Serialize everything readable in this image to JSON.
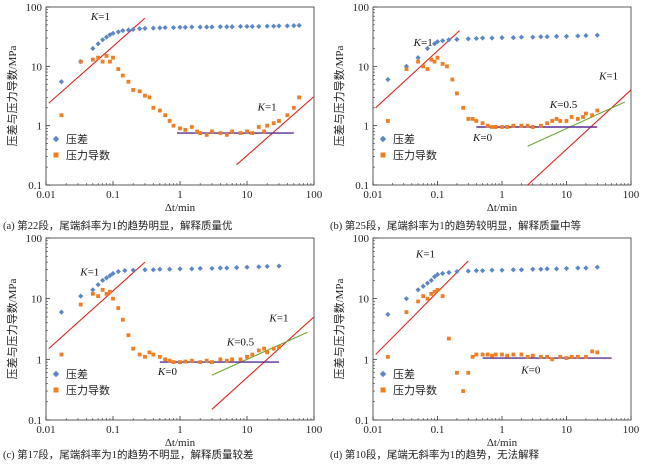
{
  "panels_layout": "2x2",
  "colors": {
    "diff": "#5b86c7",
    "deriv": "#ef7d22",
    "k1_line": "#e0241b",
    "k0_line": "#5a2d91",
    "k05_line": "#6aa832"
  },
  "chart_data": [
    {
      "type": "scatter",
      "title": "",
      "caption": "(a) 第22段，尾端斜率为1的趋势明显，解释质量优",
      "xlabel": "Δt/min",
      "ylabel": "压差与压力导数/MPa",
      "x_scale": "log",
      "y_scale": "log",
      "xlim": [
        0.01,
        100
      ],
      "ylim": [
        0.1,
        100
      ],
      "x_ticks": [
        "0.01",
        "0.1",
        "1",
        "10",
        "100"
      ],
      "y_ticks": [
        "0.1",
        "1",
        "10",
        "100"
      ],
      "grid": false,
      "legend_position": "lower-left",
      "series": [
        {
          "name": "压差",
          "marker": "diamond",
          "x": [
            0.017,
            0.033,
            0.05,
            0.06,
            0.07,
            0.08,
            0.09,
            0.1,
            0.12,
            0.14,
            0.17,
            0.2,
            0.25,
            0.3,
            0.4,
            0.5,
            0.6,
            0.8,
            1,
            1.2,
            1.5,
            2,
            2.5,
            3,
            4,
            5,
            6,
            8,
            10,
            12,
            15,
            20,
            25,
            30,
            40,
            50,
            60
          ],
          "y": [
            5.5,
            12,
            20,
            24,
            28,
            31,
            34,
            36,
            38,
            40,
            41,
            42,
            43,
            43.5,
            44,
            44.5,
            45,
            45,
            45.5,
            45.5,
            46,
            46,
            46,
            46,
            46.5,
            46.5,
            46.5,
            47,
            47,
            47,
            47,
            47.5,
            47.5,
            48,
            48,
            48.5,
            49
          ]
        },
        {
          "name": "压力导数",
          "marker": "square",
          "x": [
            0.017,
            0.033,
            0.05,
            0.06,
            0.07,
            0.08,
            0.09,
            0.1,
            0.12,
            0.14,
            0.17,
            0.2,
            0.25,
            0.3,
            0.35,
            0.4,
            0.5,
            0.6,
            0.7,
            0.8,
            1,
            1.2,
            1.5,
            1.8,
            2,
            2.5,
            3,
            4,
            5,
            6,
            8,
            10,
            12,
            15,
            18,
            20,
            25,
            30,
            40,
            50,
            60
          ],
          "y": [
            1.5,
            12,
            13,
            14,
            12,
            15,
            12,
            14,
            9,
            7,
            5.5,
            4,
            3.8,
            3.2,
            3,
            2,
            1.8,
            1.5,
            1.2,
            1,
            0.9,
            0.85,
            0.95,
            0.8,
            0.75,
            0.7,
            0.8,
            0.75,
            0.7,
            0.8,
            0.75,
            0.8,
            0.75,
            0.95,
            0.8,
            1.0,
            1.1,
            1.2,
            1.5,
            2.0,
            3.0
          ]
        }
      ],
      "reference_lines": [
        {
          "label": "K=1",
          "color": "red",
          "x": [
            0.011,
            0.3
          ],
          "y": [
            2.4,
            65
          ]
        },
        {
          "label": "K=1",
          "color": "red",
          "x": [
            7,
            100
          ],
          "y": [
            0.22,
            3.1
          ]
        },
        {
          "label": "",
          "color": "purple",
          "x": [
            0.9,
            50
          ],
          "y": [
            0.75,
            0.75
          ]
        }
      ],
      "annotations": [
        {
          "text": "K=1",
          "x": 0.065,
          "y": 60
        },
        {
          "text": "K=1",
          "x": 20,
          "y": 1.8
        }
      ]
    },
    {
      "type": "scatter",
      "title": "",
      "caption": "(b) 第25段，尾端斜率为1的趋势较明显，解释质量中等",
      "xlabel": "Δt/min",
      "ylabel": "压差与压力导数/MPa",
      "x_scale": "log",
      "y_scale": "log",
      "xlim": [
        0.01,
        100
      ],
      "ylim": [
        0.1,
        100
      ],
      "x_ticks": [
        "0.01",
        "0.1",
        "1",
        "10",
        "100"
      ],
      "y_ticks": [
        "0.1",
        "1",
        "10",
        "100"
      ],
      "grid": false,
      "legend_position": "lower-left",
      "series": [
        {
          "name": "压差",
          "marker": "diamond",
          "x": [
            0.017,
            0.033,
            0.05,
            0.07,
            0.09,
            0.1,
            0.12,
            0.15,
            0.2,
            0.3,
            0.4,
            0.5,
            0.7,
            1,
            1.5,
            2,
            3,
            4,
            5,
            7,
            10,
            15,
            20,
            30
          ],
          "y": [
            6,
            10,
            14,
            20,
            24,
            26,
            27,
            28,
            28.5,
            29,
            29.5,
            30,
            30,
            30.5,
            30.5,
            31,
            31,
            31.5,
            31.5,
            32,
            32,
            32.5,
            33,
            33.5
          ]
        },
        {
          "name": "压力导数",
          "marker": "square",
          "x": [
            0.017,
            0.033,
            0.05,
            0.06,
            0.07,
            0.08,
            0.09,
            0.1,
            0.12,
            0.14,
            0.17,
            0.2,
            0.25,
            0.3,
            0.35,
            0.4,
            0.5,
            0.6,
            0.7,
            0.8,
            1,
            1.2,
            1.5,
            2,
            2.5,
            3,
            4,
            5,
            6,
            7,
            8,
            10,
            12,
            15,
            18,
            20,
            25,
            30
          ],
          "y": [
            1.2,
            9,
            12,
            10,
            9,
            13,
            12,
            14,
            11,
            10,
            6,
            3.5,
            2,
            1.3,
            1.3,
            1.2,
            1.1,
            1.0,
            0.95,
            0.95,
            0.95,
            0.95,
            1.0,
            1.0,
            1.0,
            0.95,
            1.0,
            1.1,
            1.2,
            1.3,
            1.2,
            1.2,
            1.4,
            1.3,
            1.4,
            1.6,
            1.5,
            1.8
          ]
        }
      ],
      "reference_lines": [
        {
          "label": "K=1",
          "color": "red",
          "x": [
            0.011,
            0.22
          ],
          "y": [
            2.0,
            40
          ]
        },
        {
          "label": "K=1",
          "color": "red",
          "x": [
            2.5,
            100
          ],
          "y": [
            0.1,
            4
          ]
        },
        {
          "label": "K=0.5",
          "color": "green",
          "x": [
            2.5,
            80
          ],
          "y": [
            0.45,
            2.5
          ]
        },
        {
          "label": "K=0",
          "color": "purple",
          "x": [
            0.4,
            30
          ],
          "y": [
            0.95,
            0.95
          ]
        }
      ],
      "annotations": [
        {
          "text": "K=1",
          "x": 0.06,
          "y": 22
        },
        {
          "text": "K=1",
          "x": 45,
          "y": 6
        },
        {
          "text": "K=0.5",
          "x": 9,
          "y": 2.0
        },
        {
          "text": "K=0",
          "x": 0.5,
          "y": 0.55
        }
      ]
    },
    {
      "type": "scatter",
      "title": "",
      "caption": "(c) 第17段，尾端斜率为1的趋势不明显，解释质量较差",
      "xlabel": "Δt/min",
      "ylabel": "压差与压力导数/MPa",
      "x_scale": "log",
      "y_scale": "log",
      "xlim": [
        0.01,
        100
      ],
      "ylim": [
        0.1,
        100
      ],
      "x_ticks": [
        "0.01",
        "0.1",
        "1",
        "10",
        "100"
      ],
      "y_ticks": [
        "0.1",
        "1",
        "10",
        "100"
      ],
      "grid": false,
      "legend_position": "lower-left",
      "series": [
        {
          "name": "压差",
          "marker": "diamond",
          "x": [
            0.017,
            0.033,
            0.05,
            0.06,
            0.07,
            0.08,
            0.09,
            0.1,
            0.12,
            0.15,
            0.2,
            0.3,
            0.4,
            0.5,
            0.7,
            1,
            1.5,
            2,
            3,
            4,
            5,
            7,
            10,
            15,
            20,
            30
          ],
          "y": [
            6,
            11,
            14,
            17,
            20,
            22,
            24,
            26,
            28,
            29,
            29.5,
            30,
            30,
            30.5,
            30.5,
            31,
            31,
            31.5,
            31.5,
            32,
            32,
            32.5,
            33,
            33.5,
            34,
            34.5
          ]
        },
        {
          "name": "压力导数",
          "marker": "square",
          "x": [
            0.017,
            0.033,
            0.05,
            0.06,
            0.07,
            0.08,
            0.09,
            0.1,
            0.12,
            0.14,
            0.17,
            0.2,
            0.25,
            0.3,
            0.35,
            0.4,
            0.5,
            0.6,
            0.7,
            0.8,
            1,
            1.2,
            1.5,
            2,
            2.5,
            3,
            4,
            5,
            6,
            8,
            10,
            12,
            15,
            18,
            20,
            25,
            30
          ],
          "y": [
            1.2,
            8,
            12,
            11,
            14,
            12,
            13,
            10,
            7,
            4.5,
            2.5,
            1.5,
            1.2,
            1.1,
            1.3,
            1.2,
            1.1,
            1.0,
            0.95,
            0.9,
            0.9,
            0.92,
            0.95,
            0.9,
            0.95,
            0.9,
            1.0,
            0.95,
            1.0,
            1.0,
            1.1,
            1.2,
            1.4,
            1.5,
            1.3,
            1.5,
            1.6
          ]
        }
      ],
      "reference_lines": [
        {
          "label": "K=1",
          "color": "red",
          "x": [
            0.011,
            0.3
          ],
          "y": [
            1.5,
            40
          ]
        },
        {
          "label": "K=1",
          "color": "red",
          "x": [
            3,
            100
          ],
          "y": [
            0.15,
            5
          ]
        },
        {
          "label": "K=0.5",
          "color": "green",
          "x": [
            3,
            80
          ],
          "y": [
            0.55,
            2.8
          ]
        },
        {
          "label": "K=0",
          "color": "purple",
          "x": [
            0.5,
            30
          ],
          "y": [
            0.9,
            0.9
          ]
        }
      ],
      "annotations": [
        {
          "text": "K=1",
          "x": 0.045,
          "y": 24
        },
        {
          "text": "K=1",
          "x": 30,
          "y": 4.2
        },
        {
          "text": "K=0.5",
          "x": 8,
          "y": 1.7
        },
        {
          "text": "K=0",
          "x": 0.65,
          "y": 0.55
        }
      ]
    },
    {
      "type": "scatter",
      "title": "",
      "caption": "(d) 第10段，尾端无斜率为1的趋势，无法解释",
      "xlabel": "Δt/min",
      "ylabel": "压差与压力导数/MPa",
      "x_scale": "log",
      "y_scale": "log",
      "xlim": [
        0.01,
        100
      ],
      "ylim": [
        0.1,
        100
      ],
      "x_ticks": [
        "0.01",
        "0.1",
        "1",
        "10",
        "100"
      ],
      "y_ticks": [
        "0.1",
        "1",
        "10",
        "100"
      ],
      "grid": false,
      "legend_position": "lower-left",
      "series": [
        {
          "name": "压差",
          "marker": "diamond",
          "x": [
            0.017,
            0.033,
            0.05,
            0.06,
            0.07,
            0.08,
            0.09,
            0.1,
            0.12,
            0.15,
            0.2,
            0.3,
            0.4,
            0.5,
            0.7,
            1,
            1.5,
            2,
            3,
            4,
            5,
            7,
            10,
            15,
            20,
            30
          ],
          "y": [
            5.5,
            10,
            14,
            16,
            18,
            20,
            23,
            25,
            26,
            27,
            28,
            28.5,
            29,
            29,
            29.5,
            29.5,
            30,
            30,
            30.5,
            30.5,
            31,
            31,
            31.5,
            32,
            32,
            33
          ]
        },
        {
          "name": "压力导数",
          "marker": "square",
          "x": [
            0.017,
            0.033,
            0.05,
            0.06,
            0.07,
            0.08,
            0.09,
            0.1,
            0.12,
            0.15,
            0.2,
            0.25,
            0.3,
            0.35,
            0.4,
            0.5,
            0.6,
            0.7,
            0.8,
            1,
            1.2,
            1.5,
            2,
            2.5,
            3,
            4,
            5,
            6,
            8,
            10,
            12,
            15,
            20,
            25,
            30
          ],
          "y": [
            1.1,
            6,
            9,
            11,
            10,
            12,
            13,
            14,
            11,
            2.2,
            0.6,
            0.3,
            0.6,
            1.1,
            1.2,
            1.2,
            1.2,
            1.15,
            1.2,
            1.2,
            1.15,
            1.2,
            1.2,
            1.1,
            1.15,
            1.1,
            1.1,
            1.0,
            1.1,
            1.05,
            1.1,
            1.1,
            1.1,
            1.35,
            1.3
          ]
        }
      ],
      "reference_lines": [
        {
          "label": "K=1",
          "color": "red",
          "x": [
            0.011,
            0.3
          ],
          "y": [
            1.2,
            42
          ]
        },
        {
          "label": "K=0",
          "color": "purple",
          "x": [
            0.5,
            50
          ],
          "y": [
            1.05,
            1.05
          ]
        }
      ],
      "annotations": [
        {
          "text": "K=1",
          "x": 0.065,
          "y": 48
        },
        {
          "text": "K=0",
          "x": 2.8,
          "y": 0.58
        }
      ]
    }
  ]
}
